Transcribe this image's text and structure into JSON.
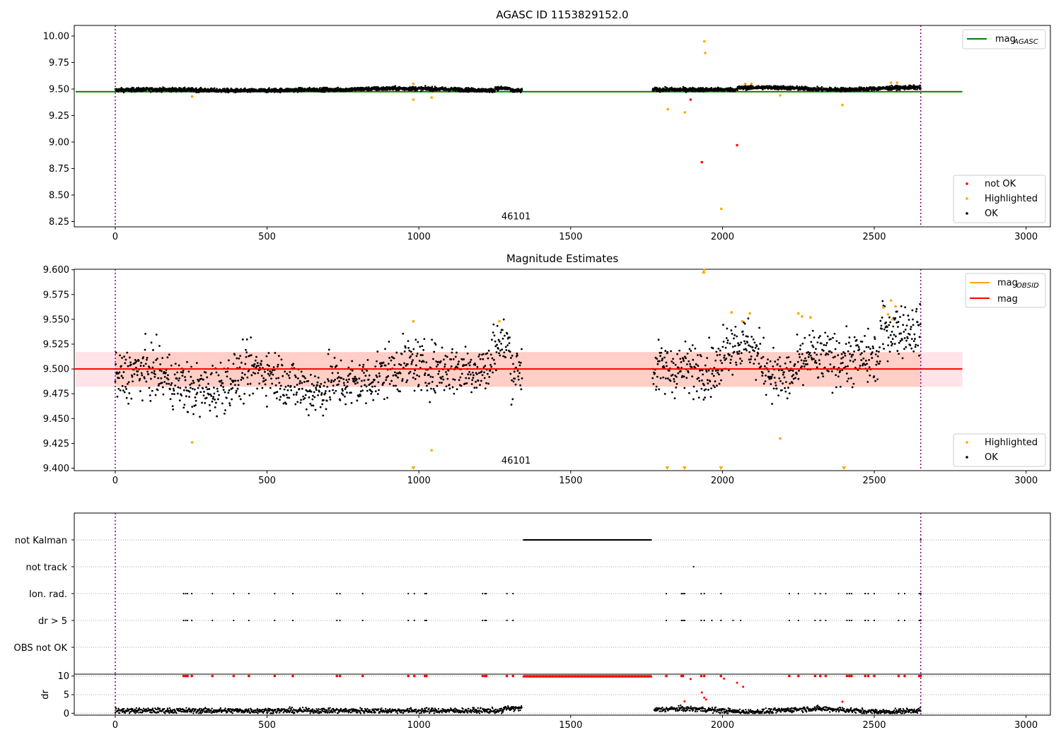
{
  "chart_data": [
    {
      "type": "scatter",
      "title": "AGASC ID 1153829152.0",
      "xlabel": "",
      "ylabel": "",
      "xlim": [
        -135,
        3080
      ],
      "ylim": [
        8.2,
        10.1
      ],
      "x_ticks": [
        "0",
        "500",
        "1000",
        "1500",
        "2000",
        "2500",
        "3000"
      ],
      "y_ticks": [
        "8.25",
        "8.50",
        "8.75",
        "9.00",
        "9.25",
        "9.50",
        "9.75",
        "10.00"
      ],
      "annotation": {
        "x": 1320,
        "y": 8.25,
        "text": "46101"
      },
      "vlines": [
        0,
        2653
      ],
      "hlines": [
        {
          "name": "mag",
          "name_sub": "AGASC",
          "y": 9.475,
          "x_range": [
            0,
            2790
          ],
          "color": "#008000"
        }
      ],
      "legend_lines": [
        {
          "name": "mag",
          "sub": "AGASC",
          "color": "#008000"
        }
      ],
      "legend_points": [
        {
          "name": "not OK",
          "color": "#ff0000"
        },
        {
          "name": "Highlighted",
          "color": "#ffa500"
        },
        {
          "name": "OK",
          "color": "#000000"
        }
      ],
      "series": [
        {
          "name": "OK",
          "color": "#000000",
          "description": "dense band near 9.49 for x 0-1340 and 1770-2650"
        },
        {
          "name": "Highlighted",
          "color": "#ffa500",
          "points": [
            [
              253,
              9.43
            ],
            [
              982,
              9.55
            ],
            [
              982,
              9.4
            ],
            [
              1042,
              9.42
            ],
            [
              1820,
              9.31
            ],
            [
              1876,
              9.28
            ],
            [
              1940,
              9.95
            ],
            [
              1943,
              9.84
            ],
            [
              1996,
              8.37
            ],
            [
              2075,
              9.55
            ],
            [
              2095,
              9.55
            ],
            [
              2190,
              9.44
            ],
            [
              2395,
              9.35
            ],
            [
              2555,
              9.56
            ],
            [
              2575,
              9.56
            ]
          ]
        },
        {
          "name": "not OK",
          "color": "#ff0000",
          "points": [
            [
              1895,
              9.4
            ],
            [
              1932,
              8.81
            ],
            [
              2048,
              8.97
            ]
          ]
        }
      ]
    },
    {
      "type": "scatter",
      "title": "Magnitude Estimates",
      "xlabel": "",
      "ylabel": "",
      "xlim": [
        -135,
        3080
      ],
      "ylim": [
        9.3975,
        9.6005
      ],
      "x_ticks": [
        "0",
        "500",
        "1000",
        "1500",
        "2000",
        "2500",
        "3000"
      ],
      "y_ticks": [
        "9.400",
        "9.425",
        "9.450",
        "9.475",
        "9.500",
        "9.525",
        "9.550",
        "9.575",
        "9.600"
      ],
      "annotation": {
        "x": 1320,
        "y": 9.4,
        "text": "46101"
      },
      "vlines": [
        0,
        2653
      ],
      "hlines": [
        {
          "name": "mag",
          "y": 9.5,
          "x_range": [
            0,
            2790
          ],
          "color": "#ff0000"
        }
      ],
      "bands": [
        {
          "y_range": [
            9.482,
            9.517
          ],
          "x_range": [
            0,
            2790
          ],
          "color": "#ffc0cb",
          "opacity": 0.45
        },
        {
          "y_range": [
            9.482,
            9.517
          ],
          "x_range": [
            0,
            2653
          ],
          "color": "#ffa07a",
          "opacity": 0.3
        }
      ],
      "legend_lines": [
        {
          "name": "mag",
          "sub": "OBSID",
          "color": "#ffa500"
        },
        {
          "name": "mag",
          "sub": "",
          "color": "#ff0000"
        }
      ],
      "legend_points": [
        {
          "name": "Highlighted",
          "color": "#ffa500"
        },
        {
          "name": "OK",
          "color": "#000000"
        }
      ],
      "series": [
        {
          "name": "OK",
          "color": "#000000",
          "description": "scatter around 9.49-9.51 with gaps at 1340-1770"
        },
        {
          "name": "Highlighted",
          "color": "#ffa500",
          "points": [
            [
              253,
              9.426
            ],
            [
              982,
              9.548
            ],
            [
              1042,
              9.418
            ],
            [
              1265,
              9.548
            ],
            [
              1940,
              9.6
            ],
            [
              2030,
              9.557
            ],
            [
              2065,
              9.548
            ],
            [
              2090,
              9.556
            ],
            [
              2190,
              9.43
            ],
            [
              2250,
              9.556
            ],
            [
              2262,
              9.553
            ],
            [
              2290,
              9.552
            ],
            [
              2530,
              9.562
            ],
            [
              2555,
              9.569
            ],
            [
              2570,
              9.563
            ],
            [
              2545,
              9.555
            ],
            [
              2560,
              9.55
            ]
          ]
        },
        {
          "name": "Highlighted-clipped-low",
          "color": "#ffa500",
          "points": [
            982,
            1818,
            1875,
            1995,
            2400
          ]
        },
        {
          "name": "Highlighted-clipped-high",
          "color": "#ffa500",
          "points": [
            1938
          ]
        }
      ]
    },
    {
      "type": "scatter",
      "title": "",
      "xlim": [
        -135,
        3080
      ],
      "categories": [
        "not Kalman",
        "not track",
        "Ion. rad.",
        "dr > 5",
        "OBS not OK"
      ],
      "vlines": [
        0,
        2653
      ],
      "flag_points": {
        "not Kalman": {
          "ranges": [
            [
              1345,
              1765
            ]
          ],
          "points": [
            2653
          ]
        },
        "not track": {
          "points": [
            1905
          ]
        },
        "Ion. rad.": {
          "points": [
            225,
            232,
            238,
            252,
            320,
            390,
            440,
            525,
            585,
            730,
            740,
            815,
            965,
            985,
            1020,
            1025,
            1210,
            1218,
            1222,
            1290,
            1310,
            1815,
            1865,
            1870,
            1875,
            1930,
            1940,
            1995,
            2220,
            2250,
            2305,
            2322,
            2340,
            2410,
            2418,
            2425,
            2470,
            2480,
            2500,
            2580,
            2600,
            2648,
            2653
          ]
        },
        "dr > 5": {
          "points": [
            225,
            232,
            238,
            252,
            320,
            390,
            440,
            525,
            585,
            730,
            740,
            815,
            965,
            985,
            1020,
            1025,
            1210,
            1218,
            1222,
            1290,
            1310,
            1815,
            1865,
            1870,
            1875,
            1930,
            1940,
            1965,
            1995,
            2035,
            2060,
            2220,
            2250,
            2305,
            2322,
            2340,
            2410,
            2418,
            2425,
            2470,
            2480,
            2500,
            2580,
            2600,
            2648,
            2653
          ]
        },
        "OBS not OK": {
          "points": []
        }
      }
    },
    {
      "type": "scatter",
      "title": "",
      "xlabel": "",
      "ylabel": "dr",
      "xlim": [
        -135,
        3080
      ],
      "ylim": [
        -0.5,
        10.5
      ],
      "x_ticks": [
        "0",
        "500",
        "1000",
        "1500",
        "2000",
        "2500",
        "3000"
      ],
      "y_ticks": [
        "0",
        "5",
        "10"
      ],
      "vlines": [
        0,
        2653
      ],
      "series": [
        {
          "name": "OK",
          "color": "#000000",
          "description": "dr values 0-2 for x 0-1340 and 1770-2650"
        },
        {
          "name": "not OK (clipped at 10)",
          "color": "#ff0000",
          "x": [
            225,
            232,
            238,
            252,
            320,
            390,
            440,
            525,
            585,
            730,
            740,
            815,
            965,
            985,
            1020,
            1025,
            1210,
            1218,
            1222,
            1290,
            1310,
            1815,
            1865,
            1870,
            1930,
            1940,
            1995,
            2220,
            2250,
            2305,
            2322,
            2340,
            2410,
            2418,
            2425,
            2470,
            2480,
            2500,
            2580,
            2600,
            2648,
            2653
          ]
        },
        {
          "name": "not OK",
          "color": "#ff0000",
          "points": [
            [
              1875,
              3.2
            ],
            [
              1895,
              9.2
            ],
            [
              1932,
              5.6
            ],
            [
              1940,
              4.2
            ],
            [
              1946,
              3.7
            ],
            [
              2005,
              9.3
            ],
            [
              2048,
              8.2
            ],
            [
              2068,
              7.1
            ],
            [
              2395,
              3.1
            ]
          ]
        }
      ]
    }
  ]
}
